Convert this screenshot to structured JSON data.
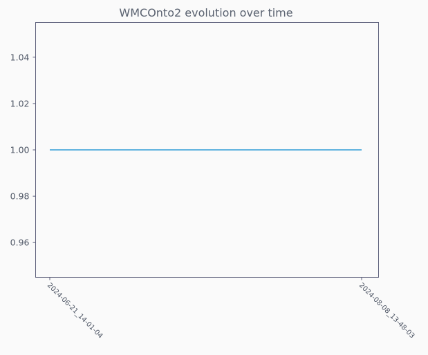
{
  "chart_data": {
    "type": "line",
    "title": "WMCOnto2 evolution over time",
    "xlabel": "",
    "ylabel": "",
    "categories": [
      "2024-06-21_14-01-04",
      "2024-08-08_13-48-03"
    ],
    "series": [
      {
        "values": [
          1.0,
          1.0
        ],
        "color": "#2e9bd6"
      }
    ],
    "ylim": [
      0.945,
      1.055
    ],
    "yticks": [
      0.96,
      0.98,
      1.0,
      1.02,
      1.04
    ],
    "ytick_labels": [
      "0.96",
      "0.98",
      "1.00",
      "1.02",
      "1.04"
    ],
    "grid": false,
    "legend": "none"
  }
}
